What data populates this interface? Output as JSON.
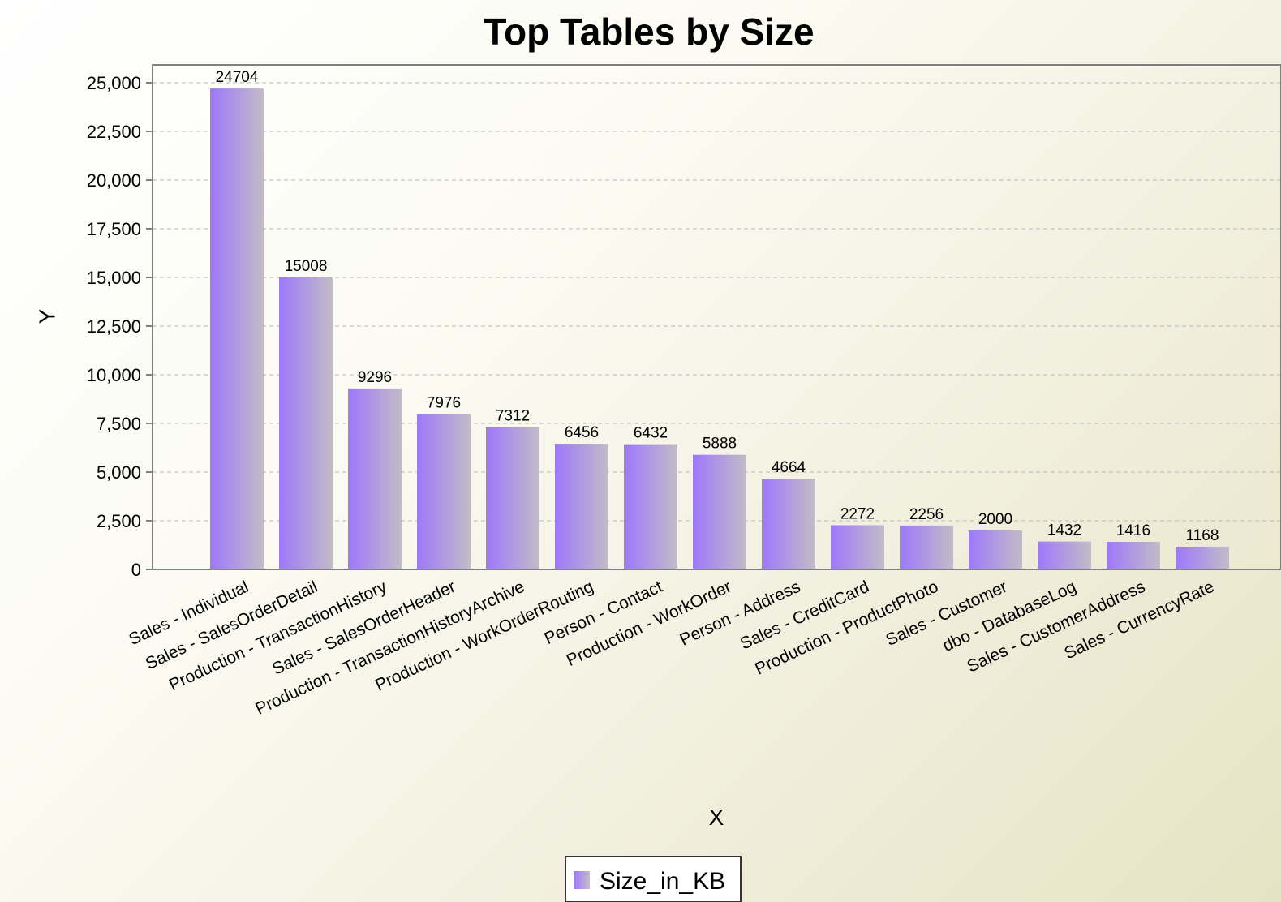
{
  "chart_data": {
    "type": "bar",
    "title": "Top Tables by Size",
    "xlabel": "X",
    "ylabel": "Y",
    "ylim": [
      0,
      25000
    ],
    "yticks": [
      0,
      2500,
      5000,
      7500,
      10000,
      12500,
      15000,
      17500,
      20000,
      22500,
      25000
    ],
    "ytick_labels": [
      "0",
      "2,500",
      "5,000",
      "7,500",
      "10,000",
      "12,500",
      "15,000",
      "17,500",
      "20,000",
      "22,500",
      "25,000"
    ],
    "grid": true,
    "legend_position": "bottom-center",
    "categories": [
      "Sales - Individual",
      "Sales - SalesOrderDetail",
      "Production - TransactionHistory",
      "Sales - SalesOrderHeader",
      "Production - TransactionHistoryArchive",
      "Production - WorkOrderRouting",
      "Person - Contact",
      "Production - WorkOrder",
      "Person - Address",
      "Sales - CreditCard",
      "Production - ProductPhoto",
      "Sales - Customer",
      "dbo - DatabaseLog",
      "Sales - CustomerAddress",
      "Sales - CurrencyRate"
    ],
    "series": [
      {
        "name": "Size_in_KB",
        "values": [
          24704,
          15008,
          9296,
          7976,
          7312,
          6456,
          6432,
          5888,
          4664,
          2272,
          2256,
          2000,
          1432,
          1416,
          1168
        ]
      }
    ],
    "colors": {
      "bar_start": "#9e78fa",
      "bar_end": "#c2bcc6",
      "grid": "#b8b8b8",
      "axis": "#808080"
    }
  }
}
